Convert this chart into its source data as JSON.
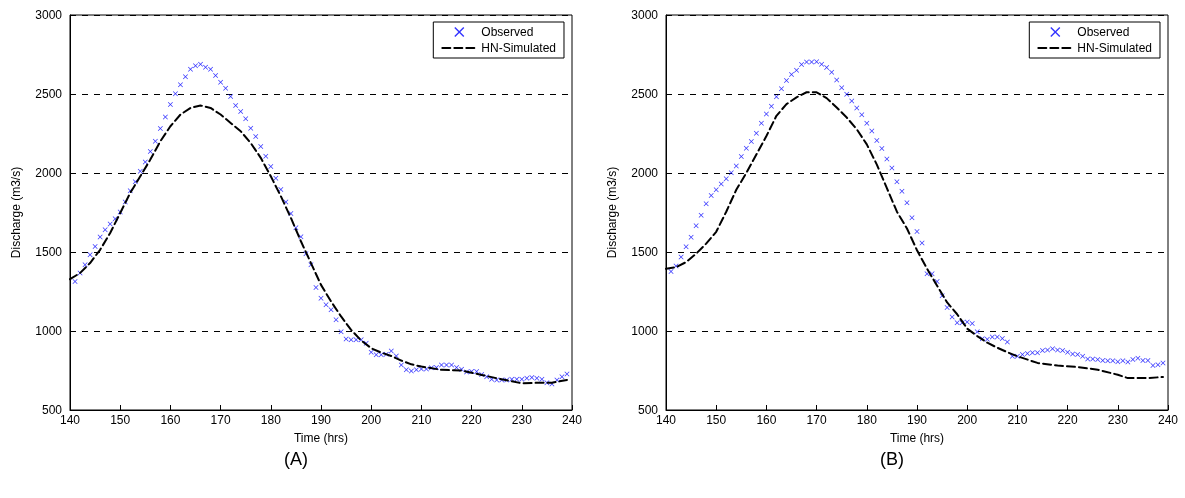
{
  "chart_data": [
    {
      "type": "line",
      "xlabel": "Time (hrs)",
      "ylabel": "Discharge (m3/s)",
      "annotations": [
        "(A)"
      ],
      "xlim": [
        140,
        240
      ],
      "xticks": [
        140,
        150,
        160,
        170,
        180,
        190,
        200,
        210,
        220,
        230,
        240
      ],
      "ylim": [
        500,
        3000
      ],
      "yticks": [
        500,
        1000,
        1500,
        2000,
        2500,
        3000
      ],
      "grid": "y",
      "legend": "top right",
      "series": [
        {
          "name": "Observed",
          "type": "scatter",
          "marker": "cross",
          "color": "#0000ff",
          "x": [
            141,
            142,
            143,
            144,
            145,
            146,
            147,
            148,
            149,
            150,
            151,
            152,
            153,
            154,
            155,
            156,
            157,
            158,
            159,
            160,
            161,
            162,
            163,
            164,
            165,
            166,
            167,
            168,
            169,
            170,
            171,
            172,
            173,
            174,
            175,
            176,
            177,
            178,
            179,
            180,
            181,
            182,
            183,
            184,
            185,
            186,
            187,
            188,
            189,
            190,
            191,
            192,
            193,
            194,
            195,
            196,
            197,
            198,
            199,
            200,
            201,
            202,
            203,
            204,
            205,
            206,
            207,
            208,
            209,
            210,
            211,
            212,
            213,
            214,
            215,
            216,
            217,
            218,
            219,
            220,
            221,
            222,
            223,
            224,
            225,
            226,
            227,
            228,
            229,
            230,
            231,
            232,
            233,
            234,
            235,
            236,
            237,
            238,
            239
          ],
          "values": [
            1314,
            1367,
            1419,
            1483,
            1535,
            1595,
            1641,
            1677,
            1711,
            1753,
            1817,
            1888,
            1945,
            2011,
            2070,
            2136,
            2201,
            2281,
            2355,
            2434,
            2501,
            2558,
            2609,
            2656,
            2679,
            2689,
            2670,
            2656,
            2617,
            2575,
            2537,
            2484,
            2427,
            2389,
            2343,
            2284,
            2231,
            2167,
            2106,
            2041,
            1967,
            1895,
            1817,
            1743,
            1654,
            1597,
            1489,
            1419,
            1276,
            1208,
            1166,
            1134,
            1071,
            995,
            950,
            944,
            944,
            944,
            923,
            866,
            849,
            849,
            853,
            874,
            842,
            785,
            754,
            747,
            754,
            760,
            760,
            767,
            769,
            785,
            785,
            785,
            769,
            758,
            741,
            743,
            743,
            724,
            711,
            694,
            690,
            690,
            690,
            694,
            694,
            694,
            701,
            705,
            701,
            694,
            673,
            665,
            690,
            711,
            728
          ]
        },
        {
          "name": "HN-Simulated",
          "type": "line",
          "marker": "none",
          "line_style": "dashed",
          "color": "#000000",
          "x": [
            140,
            142,
            144,
            146,
            148,
            150,
            152,
            154,
            156,
            158,
            160,
            162,
            164,
            166,
            168,
            170,
            172,
            174,
            176,
            178,
            180,
            182,
            184,
            186,
            188,
            190,
            192,
            194,
            196,
            198,
            200,
            202,
            204,
            206,
            208,
            210,
            214,
            218,
            222,
            226,
            230,
            234,
            236,
            239
          ],
          "values": [
            1328,
            1367,
            1430,
            1514,
            1620,
            1747,
            1874,
            1979,
            2085,
            2201,
            2296,
            2370,
            2412,
            2427,
            2412,
            2370,
            2317,
            2264,
            2190,
            2096,
            1979,
            1853,
            1716,
            1568,
            1430,
            1292,
            1187,
            1092,
            1007,
            940,
            891,
            863,
            842,
            813,
            789,
            775,
            754,
            750,
            722,
            694,
            669,
            673,
            673,
            690
          ]
        }
      ]
    },
    {
      "type": "line",
      "xlabel": "Time (hrs)",
      "ylabel": "Discharge (m3/s)",
      "annotations": [
        "(B)"
      ],
      "xlim": [
        140,
        240
      ],
      "xticks": [
        140,
        150,
        160,
        170,
        180,
        190,
        200,
        210,
        220,
        230,
        240
      ],
      "ylim": [
        500,
        3000
      ],
      "yticks": [
        500,
        1000,
        1500,
        2000,
        2500,
        3000
      ],
      "grid": "y",
      "legend": "top right",
      "series": [
        {
          "name": "Observed",
          "type": "scatter",
          "marker": "cross",
          "color": "#0000ff",
          "x": [
            141,
            142,
            143,
            144,
            145,
            146,
            147,
            148,
            149,
            150,
            151,
            152,
            153,
            154,
            155,
            156,
            157,
            158,
            159,
            160,
            161,
            162,
            163,
            164,
            165,
            166,
            167,
            168,
            169,
            170,
            171,
            172,
            173,
            174,
            175,
            176,
            177,
            178,
            179,
            180,
            181,
            182,
            183,
            184,
            185,
            186,
            187,
            188,
            189,
            190,
            191,
            192,
            193,
            194,
            195,
            196,
            197,
            198,
            199,
            200,
            201,
            202,
            203,
            204,
            205,
            206,
            207,
            208,
            209,
            210,
            211,
            212,
            213,
            214,
            215,
            216,
            217,
            218,
            219,
            220,
            221,
            222,
            223,
            224,
            225,
            226,
            227,
            228,
            229,
            230,
            231,
            232,
            233,
            234,
            235,
            236,
            237,
            238,
            239
          ],
          "values": [
            1377,
            1411,
            1468,
            1534,
            1594,
            1666,
            1732,
            1806,
            1857,
            1894,
            1930,
            1964,
            2002,
            2045,
            2104,
            2157,
            2200,
            2251,
            2315,
            2374,
            2423,
            2483,
            2534,
            2585,
            2623,
            2651,
            2687,
            2702,
            2702,
            2704,
            2689,
            2668,
            2638,
            2589,
            2540,
            2498,
            2455,
            2411,
            2368,
            2315,
            2266,
            2206,
            2155,
            2089,
            2032,
            1945,
            1885,
            1811,
            1717,
            1630,
            1557,
            1362,
            1362,
            1313,
            1223,
            1149,
            1089,
            1053,
            1053,
            1057,
            1047,
            996,
            951,
            947,
            962,
            962,
            953,
            930,
            840,
            840,
            851,
            857,
            862,
            862,
            877,
            879,
            887,
            879,
            877,
            866,
            855,
            851,
            840,
            823,
            823,
            819,
            813,
            811,
            811,
            806,
            811,
            804,
            819,
            828,
            813,
            813,
            781,
            787,
            798
          ]
        },
        {
          "name": "HN-Simulated",
          "type": "line",
          "marker": "none",
          "line_style": "dashed",
          "color": "#000000",
          "x": [
            140,
            142,
            144,
            146,
            148,
            150,
            152,
            154,
            156,
            158,
            160,
            162,
            164,
            166,
            168,
            170,
            172,
            174,
            176,
            178,
            180,
            182,
            184,
            186,
            188,
            190,
            192,
            194,
            196,
            198,
            200,
            202,
            204,
            206,
            208,
            210,
            214,
            218,
            222,
            226,
            230,
            232,
            236,
            239
          ],
          "values": [
            1394,
            1404,
            1436,
            1489,
            1553,
            1628,
            1755,
            1894,
            2000,
            2117,
            2234,
            2362,
            2436,
            2479,
            2511,
            2511,
            2474,
            2415,
            2351,
            2277,
            2181,
            2053,
            1904,
            1755,
            1649,
            1511,
            1394,
            1287,
            1181,
            1106,
            1015,
            968,
            926,
            894,
            866,
            840,
            798,
            781,
            772,
            755,
            723,
            702,
            702,
            709
          ]
        }
      ]
    }
  ]
}
